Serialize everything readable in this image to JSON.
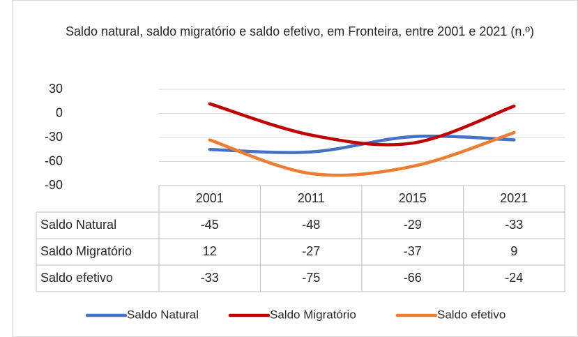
{
  "chart_data": {
    "type": "line",
    "title": "Saldo natural, saldo migratório e saldo efetivo, em Fronteira, entre 2001 e 2021 (n.º)",
    "categories": [
      "2001",
      "2011",
      "2015",
      "2021"
    ],
    "series": [
      {
        "name": "Saldo Natural",
        "color": "#4472c4",
        "values": [
          -45,
          -48,
          -29,
          -33
        ]
      },
      {
        "name": "Saldo Migratório",
        "color": "#c00000",
        "values": [
          12,
          -27,
          -37,
          9
        ]
      },
      {
        "name": "Saldo efetivo",
        "color": "#ed7d31",
        "values": [
          -33,
          -75,
          -66,
          -24
        ]
      }
    ],
    "ylim": [
      -90,
      30
    ],
    "yticks": [
      -90,
      -60,
      -30,
      0,
      30
    ],
    "grid": true,
    "smooth": true,
    "legend": "bottom"
  }
}
